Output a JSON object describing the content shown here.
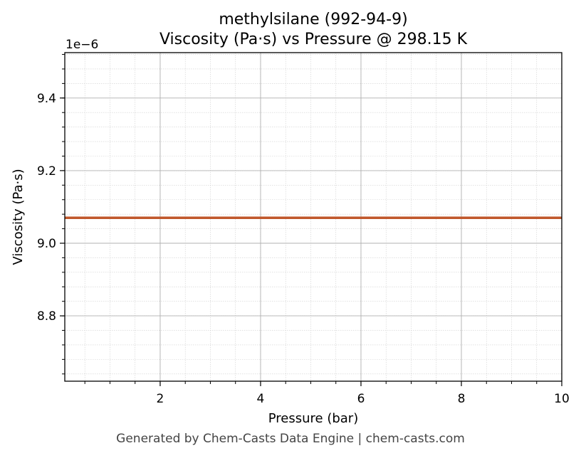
{
  "chart_data": {
    "type": "line",
    "title": "methylsilane (992-94-9)",
    "subtitle": "Viscosity (Pa·s) vs Pressure @ 298.15 K",
    "xlabel": "Pressure (bar)",
    "ylabel": "Viscosity (Pa·s)",
    "y_scale_label": "1e−6",
    "xlim": [
      0.1,
      10
    ],
    "ylim": [
      8.62,
      9.525
    ],
    "x_ticks": [
      2,
      4,
      6,
      8,
      10
    ],
    "x_tick_labels": [
      "2",
      "4",
      "6",
      "8",
      "10"
    ],
    "y_ticks": [
      8.8,
      9.0,
      9.2,
      9.4
    ],
    "y_tick_labels": [
      "8.8",
      "9.0",
      "9.2",
      "9.4"
    ],
    "grid": true,
    "series": [
      {
        "color": "#c0572b",
        "x": [
          0.1,
          1,
          2,
          3,
          4,
          5,
          6,
          7,
          8,
          9,
          10
        ],
        "y": [
          9.07,
          9.07,
          9.07,
          9.07,
          9.07,
          9.07,
          9.07,
          9.07,
          9.07,
          9.07,
          9.07
        ]
      }
    ]
  },
  "footer": "Generated by Chem-Casts Data Engine | chem-casts.com"
}
